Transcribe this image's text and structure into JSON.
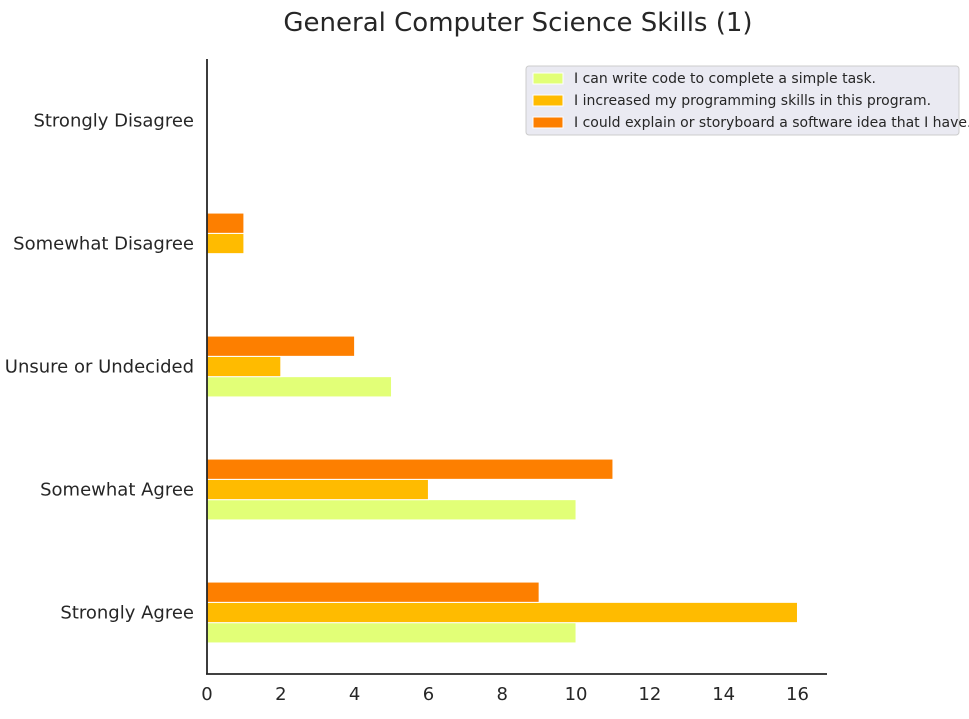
{
  "chart_data": {
    "type": "bar",
    "orientation": "horizontal",
    "title": "General Computer Science Skills (1)",
    "xlabel": "",
    "ylabel": "",
    "categories": [
      "Strongly Agree",
      "Somewhat Agree",
      "Unsure or Undecided",
      "Somewhat Disagree",
      "Strongly Disagree"
    ],
    "series": [
      {
        "name": "I can write code to complete a simple task.",
        "color": "#e2ff77",
        "values": [
          10,
          10,
          5,
          0,
          0
        ]
      },
      {
        "name": "I increased my programming skills in this program.",
        "color": "#ffbb00",
        "values": [
          16,
          6,
          2,
          1,
          0
        ]
      },
      {
        "name": "I could explain or storyboard a software idea that I have.",
        "color": "#fd7f00",
        "values": [
          9,
          11,
          4,
          1,
          0
        ]
      }
    ],
    "xlim": [
      0,
      16.8
    ],
    "xticks": [
      0,
      2,
      4,
      6,
      8,
      10,
      12,
      14,
      16
    ],
    "grid": false,
    "legend_position": "top-right"
  }
}
